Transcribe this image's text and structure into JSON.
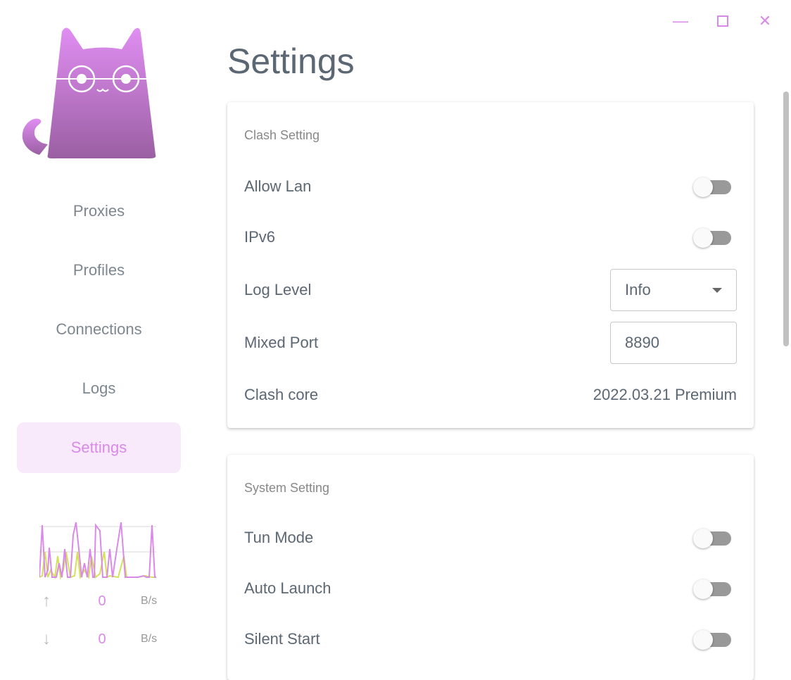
{
  "window": {
    "minimize_icon": "minimize-icon",
    "maximize_icon": "maximize-icon",
    "close_icon": "close-icon"
  },
  "sidebar": {
    "items": [
      {
        "label": "Proxies"
      },
      {
        "label": "Profiles"
      },
      {
        "label": "Connections"
      },
      {
        "label": "Logs"
      },
      {
        "label": "Settings",
        "active": true
      }
    ],
    "traffic": {
      "up": {
        "value": "0",
        "unit": "B/s"
      },
      "down": {
        "value": "0",
        "unit": "B/s"
      }
    }
  },
  "page": {
    "title": "Settings"
  },
  "clash": {
    "title": "Clash Setting",
    "allow_lan": {
      "label": "Allow Lan",
      "on": false
    },
    "ipv6": {
      "label": "IPv6",
      "on": false
    },
    "log_level": {
      "label": "Log Level",
      "value": "Info"
    },
    "mixed_port": {
      "label": "Mixed Port",
      "value": "8890"
    },
    "core": {
      "label": "Clash core",
      "value": "2022.03.21 Premium"
    }
  },
  "system": {
    "title": "System Setting",
    "tun": {
      "label": "Tun Mode",
      "on": false
    },
    "auto_launch": {
      "label": "Auto Launch",
      "on": false
    },
    "silent_start": {
      "label": "Silent Start",
      "on": false
    }
  },
  "colors": {
    "accent": "#d98ae8",
    "text": "#5b6773",
    "upload_line": "#d98ae8",
    "download_line": "#d4e157"
  }
}
